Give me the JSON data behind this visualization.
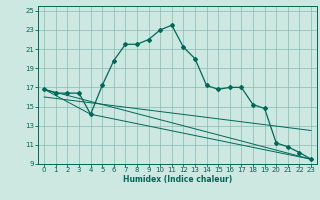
{
  "xlabel": "Humidex (Indice chaleur)",
  "bg_color": "#cce8e0",
  "grid_color": "#88bbb4",
  "line_color": "#006858",
  "xlim": [
    -0.5,
    23.5
  ],
  "ylim": [
    9,
    25.5
  ],
  "xticks": [
    0,
    1,
    2,
    3,
    4,
    5,
    6,
    7,
    8,
    9,
    10,
    11,
    12,
    13,
    14,
    15,
    16,
    17,
    18,
    19,
    20,
    21,
    22,
    23
  ],
  "yticks": [
    9,
    11,
    13,
    15,
    17,
    19,
    21,
    23,
    25
  ],
  "curve1_x": [
    0,
    1,
    2,
    3,
    4,
    5,
    6,
    7,
    8,
    9,
    10,
    11,
    12,
    13,
    14,
    15,
    16,
    17,
    18,
    19,
    20,
    21,
    22,
    23
  ],
  "curve1_y": [
    16.8,
    16.4,
    16.4,
    16.4,
    14.2,
    17.2,
    19.8,
    21.5,
    21.5,
    22.0,
    23.0,
    23.5,
    21.2,
    20.0,
    17.2,
    16.8,
    17.0,
    17.0,
    15.2,
    14.8,
    11.2,
    10.8,
    10.2,
    9.5
  ],
  "curve2_x": [
    0,
    23
  ],
  "curve2_y": [
    16.8,
    9.5
  ],
  "curve3_x": [
    0,
    4,
    23
  ],
  "curve3_y": [
    16.8,
    14.2,
    9.5
  ],
  "curve4_x": [
    0,
    23
  ],
  "curve4_y": [
    16.0,
    12.5
  ],
  "xlabel_fontsize": 5.5,
  "tick_fontsize": 5.0
}
